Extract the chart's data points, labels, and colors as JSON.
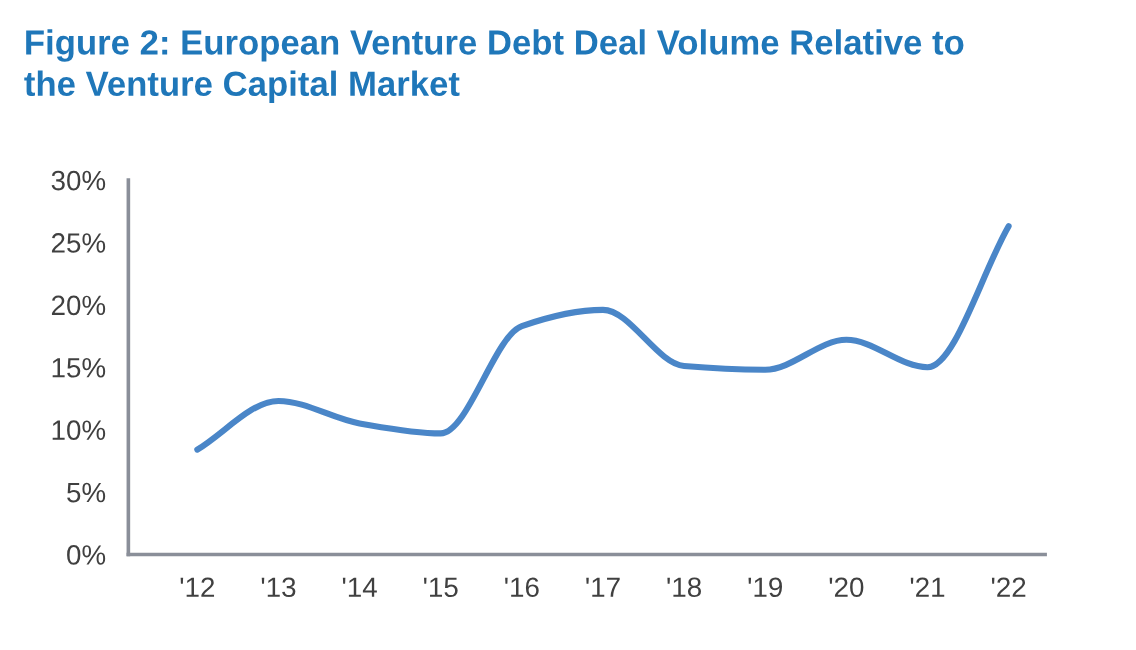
{
  "chart_data": {
    "type": "line",
    "title": "Figure 2: European Venture Debt Deal Volume Relative to\nthe Venture Capital Market",
    "categories": [
      "'12",
      "'13",
      "'14",
      "'15",
      "'16",
      "'17",
      "'18",
      "'19",
      "'20",
      "'21",
      "'22"
    ],
    "series": [
      {
        "color": "#4a86c8",
        "values": [
          8.4,
          12.3,
          10.5,
          9.7,
          18.3,
          19.6,
          15.1,
          14.8,
          17.2,
          15.0,
          26.3
        ]
      }
    ],
    "ylim": [
      0,
      30
    ],
    "yticks": [
      {
        "value": 0,
        "label": "0%"
      },
      {
        "value": 5,
        "label": "5%"
      },
      {
        "value": 10,
        "label": "10%"
      },
      {
        "value": 15,
        "label": "15%"
      },
      {
        "value": 20,
        "label": "20%"
      },
      {
        "value": 25,
        "label": "25%"
      },
      {
        "value": 30,
        "label": "30%"
      }
    ],
    "grid": false,
    "marker": "none",
    "line_style": "solid"
  }
}
